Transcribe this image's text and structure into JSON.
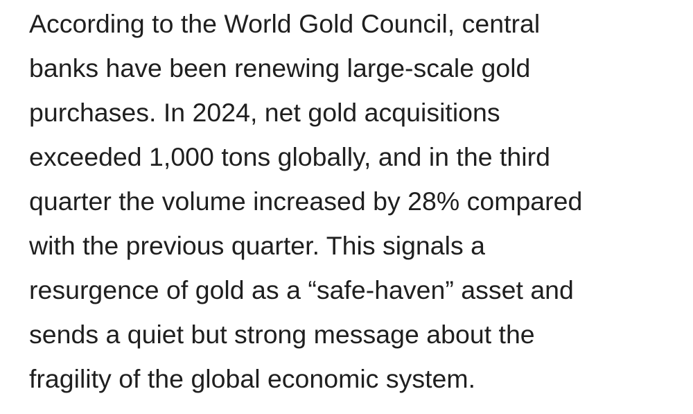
{
  "article": {
    "lines": [
      "According to the World Gold Council, central",
      "banks have been renewing large-scale gold",
      "purchases. In 2024, net gold acquisitions",
      "exceeded 1,000 tons globally, and in the third",
      "quarter the volume increased by 28% compared",
      "with the previous quarter. This signals a",
      "resurgence of gold as a “safe-haven” asset and",
      "sends a quiet but strong message about the",
      "fragility of the global economic system."
    ]
  }
}
